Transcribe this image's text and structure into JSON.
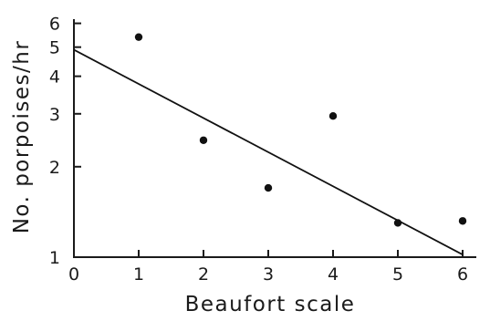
{
  "chart_data": {
    "type": "scatter",
    "title": "",
    "xlabel": "Beaufort scale",
    "ylabel": "No. porpoises/hr",
    "xlim": [
      0,
      6.5
    ],
    "ylim": [
      1,
      7
    ],
    "yscale": "log",
    "grid": false,
    "xticks": [
      0,
      1,
      2,
      3,
      4,
      5,
      6
    ],
    "yticks": [
      1,
      2,
      3,
      4,
      5,
      6
    ],
    "series": [
      {
        "points": [
          {
            "x": 1,
            "y": 5.4
          },
          {
            "x": 2,
            "y": 2.45
          },
          {
            "x": 3,
            "y": 1.7
          },
          {
            "x": 4,
            "y": 2.95
          },
          {
            "x": 5,
            "y": 1.3
          },
          {
            "x": 6,
            "y": 1.32
          }
        ]
      }
    ],
    "fit_line": {
      "from": {
        "x": 0,
        "y": 4.9
      },
      "to": {
        "x": 6,
        "y": 1.02
      }
    }
  }
}
